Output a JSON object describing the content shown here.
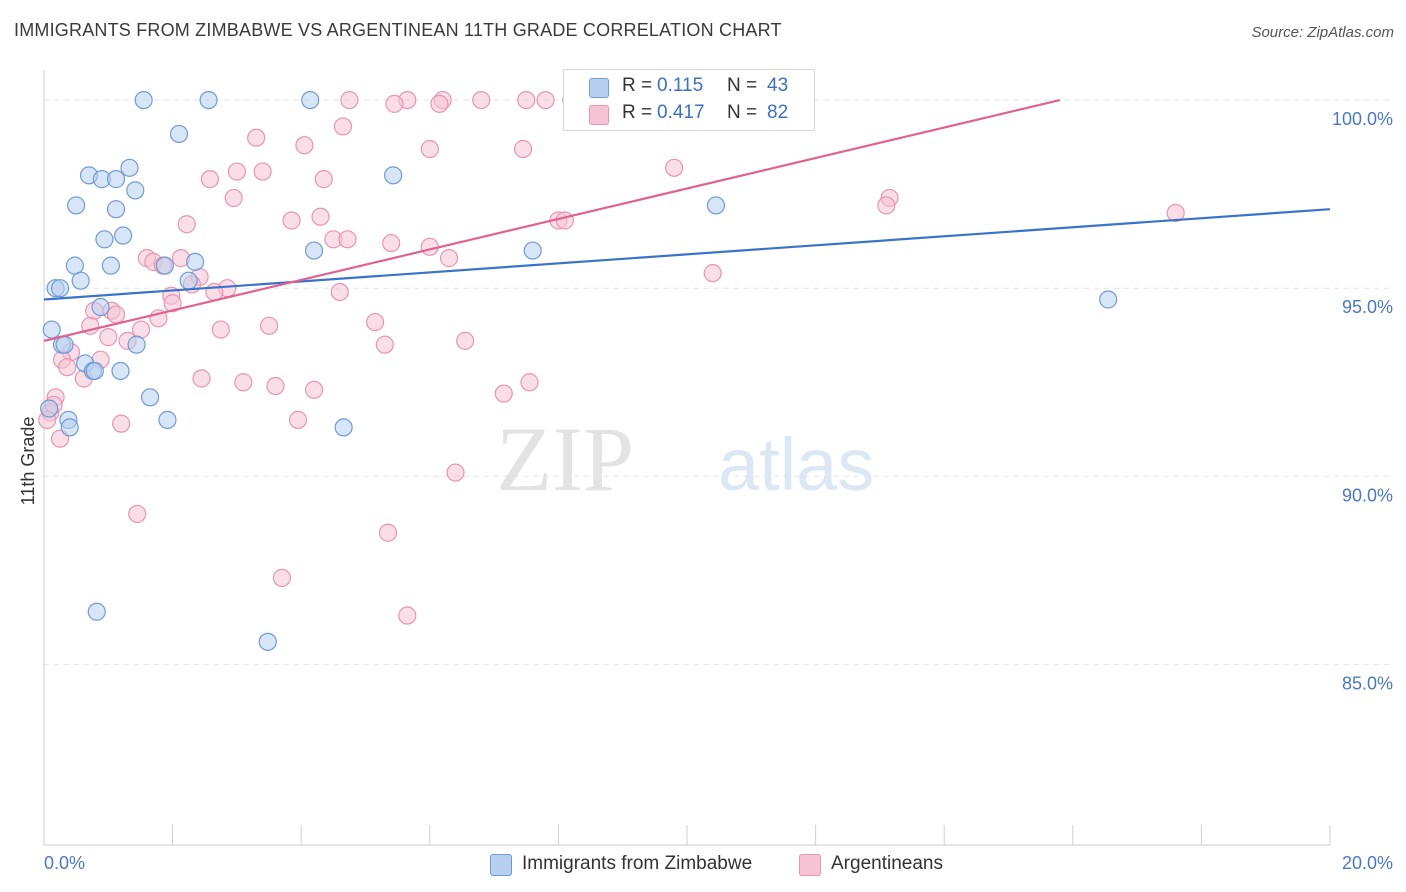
{
  "header": {
    "title": "IMMIGRANTS FROM ZIMBABWE VS ARGENTINEAN 11TH GRADE CORRELATION CHART",
    "source": "Source: ZipAtlas.com"
  },
  "legend": {
    "rows": [
      {
        "r_label": "R =",
        "r_value": "0.115",
        "n_label": "N =",
        "n_value": "43"
      },
      {
        "r_label": "R =",
        "r_value": "0.417",
        "n_label": "N =",
        "n_value": "82"
      }
    ]
  },
  "bottom_legend": {
    "series1": "Immigrants from Zimbabwe",
    "series2": "Argentineans"
  },
  "watermark": {
    "zip": "ZIP",
    "atlas": "atlas"
  },
  "colors": {
    "blue_fill": "#b8d0ef",
    "blue_stroke": "#6f9bd6",
    "blue_line": "#3a73c8",
    "pink_fill": "#f6c3d4",
    "pink_stroke": "#e994b2",
    "pink_line": "#e0628e",
    "tick": "#4a78c2"
  },
  "chart_data": {
    "type": "scatter",
    "title": "IMMIGRANTS FROM ZIMBABWE VS ARGENTINEAN 11TH GRADE CORRELATION CHART",
    "xlabel": "",
    "ylabel": "11th Grade",
    "xlim": [
      0,
      20
    ],
    "ylim": [
      80.2,
      100.8
    ],
    "x_tick_labels": [
      {
        "value": 0,
        "label": "0.0%"
      },
      {
        "value": 20,
        "label": "20.0%"
      }
    ],
    "y_tick_labels": [
      {
        "value": 100,
        "label": "100.0%"
      },
      {
        "value": 95,
        "label": "95.0%"
      },
      {
        "value": 90,
        "label": "90.0%"
      },
      {
        "value": 85,
        "label": "85.0%"
      }
    ],
    "series": [
      {
        "name": "Immigrants from Zimbabwe",
        "color": "blue",
        "trend": {
          "x0": 0,
          "y0": 94.7,
          "x1": 20,
          "y1": 97.1
        },
        "points": [
          {
            "x": 1.55,
            "y": 100.0
          },
          {
            "x": 2.56,
            "y": 100.0
          },
          {
            "x": 4.14,
            "y": 100.0
          },
          {
            "x": 2.1,
            "y": 99.1
          },
          {
            "x": 1.33,
            "y": 98.2
          },
          {
            "x": 0.7,
            "y": 98.0
          },
          {
            "x": 0.9,
            "y": 97.9
          },
          {
            "x": 1.12,
            "y": 97.9
          },
          {
            "x": 5.43,
            "y": 98.0
          },
          {
            "x": 1.42,
            "y": 97.6
          },
          {
            "x": 0.5,
            "y": 97.2
          },
          {
            "x": 1.12,
            "y": 97.1
          },
          {
            "x": 10.45,
            "y": 97.2
          },
          {
            "x": 1.23,
            "y": 96.4
          },
          {
            "x": 0.94,
            "y": 96.3
          },
          {
            "x": 4.2,
            "y": 96.0
          },
          {
            "x": 7.6,
            "y": 96.0
          },
          {
            "x": 0.48,
            "y": 95.6
          },
          {
            "x": 1.04,
            "y": 95.6
          },
          {
            "x": 2.35,
            "y": 95.7
          },
          {
            "x": 1.88,
            "y": 95.6
          },
          {
            "x": 0.57,
            "y": 95.2
          },
          {
            "x": 2.25,
            "y": 95.2
          },
          {
            "x": 0.18,
            "y": 95.0
          },
          {
            "x": 0.25,
            "y": 95.0
          },
          {
            "x": 16.55,
            "y": 94.7
          },
          {
            "x": 0.88,
            "y": 94.5
          },
          {
            "x": 0.12,
            "y": 93.9
          },
          {
            "x": 0.28,
            "y": 93.5
          },
          {
            "x": 0.32,
            "y": 93.5
          },
          {
            "x": 1.44,
            "y": 93.5
          },
          {
            "x": 0.64,
            "y": 93.0
          },
          {
            "x": 0.76,
            "y": 92.8
          },
          {
            "x": 0.79,
            "y": 92.8
          },
          {
            "x": 1.19,
            "y": 92.8
          },
          {
            "x": 1.65,
            "y": 92.1
          },
          {
            "x": 0.08,
            "y": 91.8
          },
          {
            "x": 0.38,
            "y": 91.5
          },
          {
            "x": 1.92,
            "y": 91.5
          },
          {
            "x": 0.4,
            "y": 91.3
          },
          {
            "x": 4.66,
            "y": 91.3
          },
          {
            "x": 0.82,
            "y": 86.4
          },
          {
            "x": 3.48,
            "y": 85.6
          }
        ]
      },
      {
        "name": "Argentineans",
        "color": "pink",
        "trend": {
          "x0": 0,
          "y0": 93.6,
          "x1": 15.8,
          "y1": 100.0
        },
        "points": [
          {
            "x": 4.75,
            "y": 100.0
          },
          {
            "x": 5.65,
            "y": 100.0
          },
          {
            "x": 6.2,
            "y": 100.0
          },
          {
            "x": 6.8,
            "y": 100.0
          },
          {
            "x": 7.5,
            "y": 100.0
          },
          {
            "x": 7.8,
            "y": 100.0
          },
          {
            "x": 8.2,
            "y": 100.0
          },
          {
            "x": 5.45,
            "y": 99.9
          },
          {
            "x": 6.15,
            "y": 99.9
          },
          {
            "x": 8.55,
            "y": 100.0
          },
          {
            "x": 4.65,
            "y": 99.3
          },
          {
            "x": 3.3,
            "y": 99.0
          },
          {
            "x": 4.05,
            "y": 98.8
          },
          {
            "x": 6.0,
            "y": 98.7
          },
          {
            "x": 7.45,
            "y": 98.7
          },
          {
            "x": 3.0,
            "y": 98.1
          },
          {
            "x": 3.4,
            "y": 98.1
          },
          {
            "x": 9.8,
            "y": 98.2
          },
          {
            "x": 2.58,
            "y": 97.9
          },
          {
            "x": 4.35,
            "y": 97.9
          },
          {
            "x": 2.95,
            "y": 97.4
          },
          {
            "x": 13.15,
            "y": 97.4
          },
          {
            "x": 13.1,
            "y": 97.2
          },
          {
            "x": 17.6,
            "y": 97.0
          },
          {
            "x": 4.3,
            "y": 96.9
          },
          {
            "x": 3.85,
            "y": 96.8
          },
          {
            "x": 8.0,
            "y": 96.8
          },
          {
            "x": 8.1,
            "y": 96.8
          },
          {
            "x": 2.22,
            "y": 96.7
          },
          {
            "x": 4.5,
            "y": 96.3
          },
          {
            "x": 4.72,
            "y": 96.3
          },
          {
            "x": 5.4,
            "y": 96.2
          },
          {
            "x": 6.0,
            "y": 96.1
          },
          {
            "x": 1.6,
            "y": 95.8
          },
          {
            "x": 2.13,
            "y": 95.8
          },
          {
            "x": 1.7,
            "y": 95.7
          },
          {
            "x": 1.85,
            "y": 95.6
          },
          {
            "x": 6.3,
            "y": 95.8
          },
          {
            "x": 10.4,
            "y": 95.4
          },
          {
            "x": 2.42,
            "y": 95.3
          },
          {
            "x": 2.3,
            "y": 95.1
          },
          {
            "x": 2.85,
            "y": 95.0
          },
          {
            "x": 4.6,
            "y": 94.9
          },
          {
            "x": 1.98,
            "y": 94.8
          },
          {
            "x": 2.65,
            "y": 94.9
          },
          {
            "x": 2.0,
            "y": 94.6
          },
          {
            "x": 0.78,
            "y": 94.4
          },
          {
            "x": 1.05,
            "y": 94.4
          },
          {
            "x": 1.12,
            "y": 94.3
          },
          {
            "x": 1.78,
            "y": 94.2
          },
          {
            "x": 5.15,
            "y": 94.1
          },
          {
            "x": 3.5,
            "y": 94.0
          },
          {
            "x": 2.75,
            "y": 93.9
          },
          {
            "x": 0.72,
            "y": 94.0
          },
          {
            "x": 1.51,
            "y": 93.9
          },
          {
            "x": 1.3,
            "y": 93.6
          },
          {
            "x": 6.55,
            "y": 93.6
          },
          {
            "x": 5.3,
            "y": 93.5
          },
          {
            "x": 0.42,
            "y": 93.3
          },
          {
            "x": 0.28,
            "y": 93.1
          },
          {
            "x": 0.88,
            "y": 93.1
          },
          {
            "x": 0.36,
            "y": 92.9
          },
          {
            "x": 0.62,
            "y": 92.6
          },
          {
            "x": 2.45,
            "y": 92.6
          },
          {
            "x": 3.1,
            "y": 92.5
          },
          {
            "x": 3.6,
            "y": 92.4
          },
          {
            "x": 4.2,
            "y": 92.3
          },
          {
            "x": 7.55,
            "y": 92.5
          },
          {
            "x": 7.15,
            "y": 92.2
          },
          {
            "x": 0.18,
            "y": 92.1
          },
          {
            "x": 0.1,
            "y": 91.7
          },
          {
            "x": 3.95,
            "y": 91.5
          },
          {
            "x": 1.2,
            "y": 91.4
          },
          {
            "x": 0.25,
            "y": 91.0
          },
          {
            "x": 6.4,
            "y": 90.1
          },
          {
            "x": 1.45,
            "y": 89.0
          },
          {
            "x": 5.35,
            "y": 88.5
          },
          {
            "x": 3.7,
            "y": 87.3
          },
          {
            "x": 5.65,
            "y": 86.3
          },
          {
            "x": 0.05,
            "y": 91.5
          },
          {
            "x": 0.15,
            "y": 91.9
          },
          {
            "x": 1.0,
            "y": 93.7
          }
        ]
      }
    ]
  }
}
